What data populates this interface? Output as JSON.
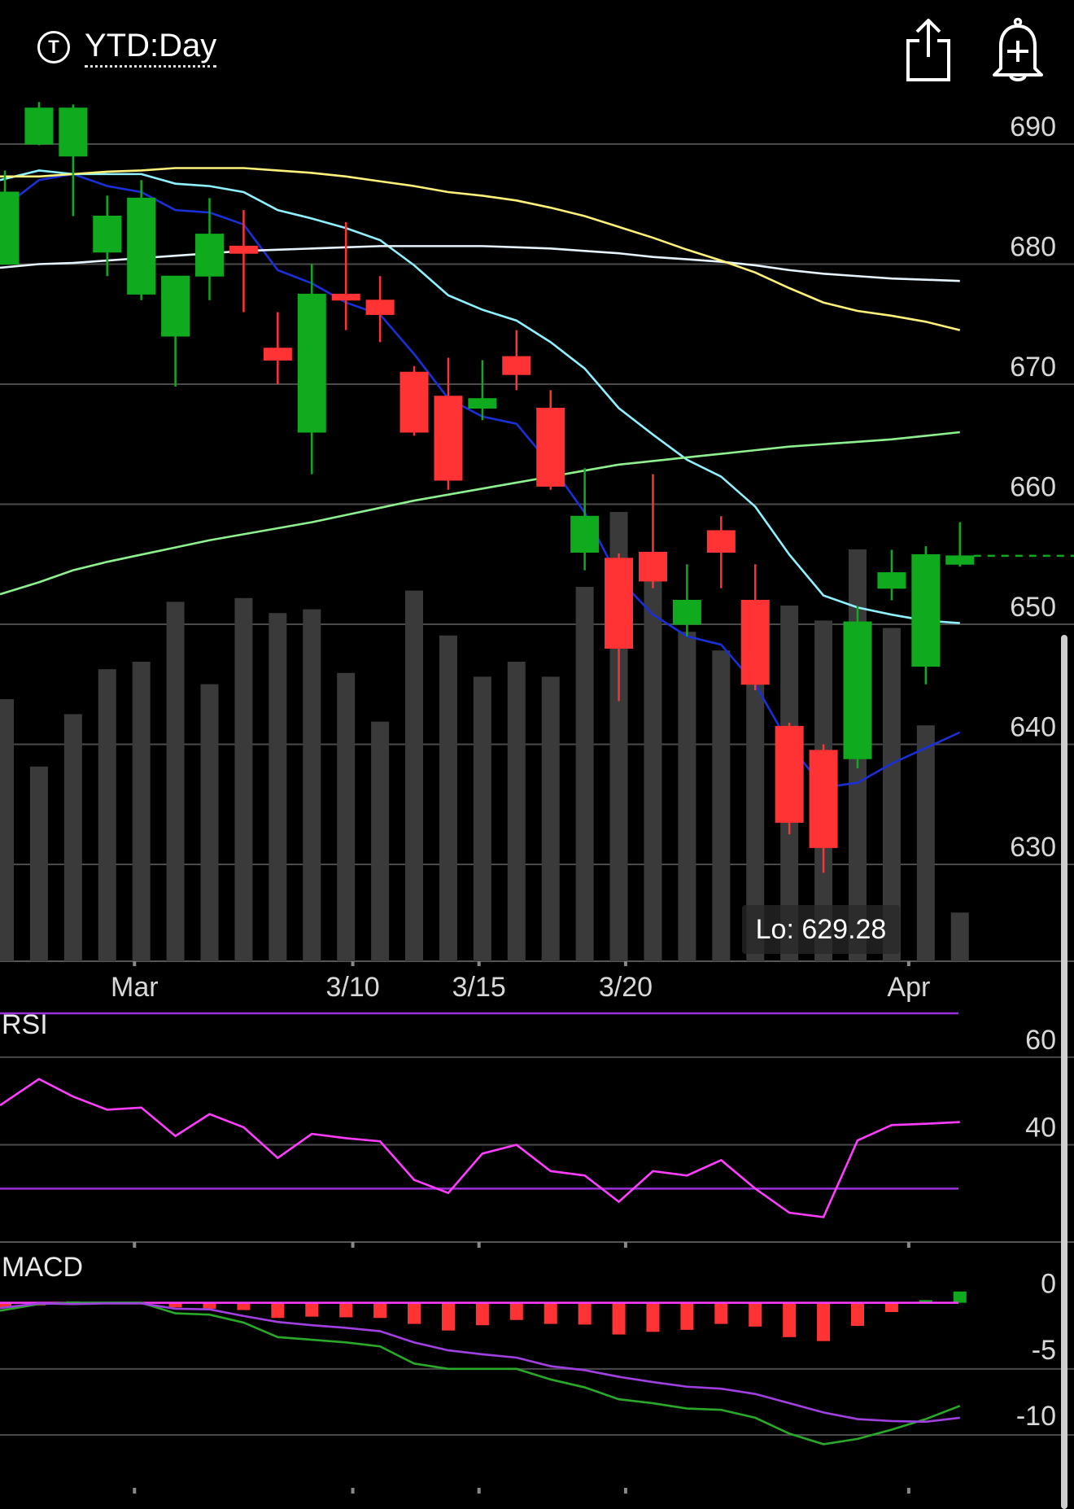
{
  "header": {
    "ticker_icon": "T",
    "range_label": "YTD:Day",
    "share_icon": "share-icon",
    "alert_icon": "bell-plus-icon"
  },
  "lo_label": "Lo: 629.28",
  "colors": {
    "up": "#0faa1d",
    "down": "#ff3333",
    "volume": "#3a3a3a",
    "ma_yellow": "#fff27a",
    "ma_white": "#e6f4ff",
    "ma_cyan": "#8ff1ff",
    "ma_blue": "#1a2fd6",
    "ma_green": "#8ff08f",
    "rsi": "#ff3dff",
    "rsi_band": "#9b30d9",
    "macd": "#2aa82a",
    "signal": "#a040e0"
  },
  "chart_data": [
    {
      "type": "candlestick",
      "title": "",
      "x_tick_labels": [
        "Mar",
        "3/10",
        "3/15",
        "3/20",
        "Apr"
      ],
      "ylim": [
        622,
        694
      ],
      "y_ticks": [
        630,
        640,
        650,
        660,
        670,
        680,
        690
      ],
      "last_price": 655.7,
      "low_label": "Lo: 629.28",
      "candles": [
        {
          "o": 680.0,
          "h": 687.8,
          "l": 680.0,
          "c": 686.0
        },
        {
          "o": 690.0,
          "h": 693.5,
          "l": 689.9,
          "c": 693.0
        },
        {
          "o": 689.0,
          "h": 693.3,
          "l": 684.0,
          "c": 693.0
        },
        {
          "o": 681.0,
          "h": 685.7,
          "l": 679.0,
          "c": 684.0
        },
        {
          "o": 677.5,
          "h": 687.0,
          "l": 677.0,
          "c": 685.5
        },
        {
          "o": 674.0,
          "h": 679.0,
          "l": 669.8,
          "c": 679.0
        },
        {
          "o": 679.0,
          "h": 685.5,
          "l": 677.0,
          "c": 682.5
        },
        {
          "o": 681.5,
          "h": 684.5,
          "l": 676.0,
          "c": 680.9
        },
        {
          "o": 673.0,
          "h": 676.0,
          "l": 670.0,
          "c": 672.0
        },
        {
          "o": 666.0,
          "h": 680.0,
          "l": 662.5,
          "c": 677.5
        },
        {
          "o": 677.5,
          "h": 683.5,
          "l": 674.5,
          "c": 677.0
        },
        {
          "o": 677.0,
          "h": 679.0,
          "l": 673.5,
          "c": 675.8
        },
        {
          "o": 671.0,
          "h": 671.5,
          "l": 665.7,
          "c": 666.0
        },
        {
          "o": 669.0,
          "h": 672.2,
          "l": 661.2,
          "c": 662.0
        },
        {
          "o": 668.0,
          "h": 672.0,
          "l": 667.0,
          "c": 668.8
        },
        {
          "o": 672.3,
          "h": 674.5,
          "l": 669.5,
          "c": 670.8
        },
        {
          "o": 668.0,
          "h": 669.5,
          "l": 661.2,
          "c": 661.5
        },
        {
          "o": 656.0,
          "h": 663.0,
          "l": 654.5,
          "c": 659.0
        },
        {
          "o": 655.5,
          "h": 655.9,
          "l": 643.6,
          "c": 648.0
        },
        {
          "o": 656.0,
          "h": 662.5,
          "l": 653.0,
          "c": 653.6
        },
        {
          "o": 650.0,
          "h": 655.0,
          "l": 649.0,
          "c": 652.0
        },
        {
          "o": 657.8,
          "h": 659.0,
          "l": 653.0,
          "c": 656.0
        },
        {
          "o": 652.0,
          "h": 655.0,
          "l": 644.5,
          "c": 645.0
        },
        {
          "o": 641.5,
          "h": 641.8,
          "l": 632.5,
          "c": 633.5
        },
        {
          "o": 639.5,
          "h": 640.0,
          "l": 629.3,
          "c": 631.4
        },
        {
          "o": 638.8,
          "h": 651.5,
          "l": 638.0,
          "c": 650.2
        },
        {
          "o": 653.0,
          "h": 656.2,
          "l": 652.0,
          "c": 654.3
        },
        {
          "o": 646.5,
          "h": 656.5,
          "l": 645.0,
          "c": 655.8
        },
        {
          "o": 655.0,
          "h": 658.5,
          "l": 654.8,
          "c": 655.7
        }
      ],
      "volume_relative": [
        0.7,
        0.52,
        0.66,
        0.78,
        0.8,
        0.96,
        0.74,
        0.97,
        0.93,
        0.94,
        0.77,
        0.64,
        0.99,
        0.87,
        0.76,
        0.8,
        0.76,
        1.0,
        1.2,
        1.04,
        0.88,
        0.83,
        0.76,
        0.95,
        0.91,
        1.1,
        0.89,
        0.63,
        0.13
      ],
      "moving_averages": [
        {
          "color_key": "ma_blue",
          "values": [
            684.5,
            687.0,
            687.5,
            686.5,
            686.0,
            684.5,
            684.3,
            683.3,
            679.5,
            678.4,
            676.8,
            675.8,
            672.5,
            668.8,
            667.3,
            666.7,
            663.3,
            659.3,
            653.8,
            650.8,
            649.0,
            648.3,
            645.0,
            640.0,
            636.4,
            636.8,
            638.4,
            639.7,
            641.0
          ]
        },
        {
          "color_key": "ma_cyan",
          "values": [
            687.0,
            687.8,
            687.5,
            687.5,
            687.5,
            686.7,
            686.5,
            686.0,
            684.5,
            683.8,
            683.0,
            682.0,
            679.9,
            677.4,
            676.2,
            675.3,
            673.5,
            671.3,
            668.0,
            665.8,
            663.7,
            662.3,
            659.8,
            655.8,
            652.4,
            651.4,
            650.8,
            650.3,
            650.1
          ]
        },
        {
          "color_key": "ma_white",
          "values": [
            679.7,
            680.0,
            680.1,
            680.3,
            680.5,
            680.7,
            680.9,
            681.1,
            681.2,
            681.3,
            681.4,
            681.5,
            681.5,
            681.5,
            681.5,
            681.4,
            681.3,
            681.1,
            680.9,
            680.6,
            680.4,
            680.2,
            679.9,
            679.5,
            679.2,
            679.0,
            678.8,
            678.7,
            678.6
          ]
        },
        {
          "color_key": "ma_yellow",
          "values": [
            687.3,
            687.3,
            687.5,
            687.7,
            687.8,
            688.0,
            688.0,
            688.0,
            687.8,
            687.6,
            687.3,
            686.9,
            686.5,
            686.0,
            685.7,
            685.3,
            684.7,
            684.0,
            683.1,
            682.2,
            681.2,
            680.3,
            679.3,
            678.0,
            676.8,
            676.1,
            675.7,
            675.2,
            674.5
          ]
        },
        {
          "color_key": "ma_green",
          "values": [
            652.5,
            653.5,
            654.5,
            655.2,
            655.8,
            656.4,
            657.0,
            657.5,
            658.0,
            658.5,
            659.1,
            659.7,
            660.3,
            660.8,
            661.3,
            661.8,
            662.3,
            662.8,
            663.3,
            663.6,
            663.9,
            664.2,
            664.5,
            664.8,
            665.0,
            665.2,
            665.4,
            665.7,
            666.0
          ]
        }
      ]
    },
    {
      "type": "line",
      "title": "RSI",
      "y_ticks": [
        40,
        60
      ],
      "ylim": [
        18,
        70
      ],
      "bands": [
        30,
        70
      ],
      "values": [
        49,
        55,
        51,
        48,
        48.5,
        42,
        47,
        44,
        37,
        42.5,
        41.5,
        40.8,
        32,
        29,
        38,
        40,
        34,
        33,
        27,
        34,
        33,
        36.5,
        30,
        24.5,
        23.5,
        41,
        44.5,
        44.8,
        45.2
      ]
    },
    {
      "type": "bar",
      "title": "MACD",
      "y_ticks": [
        0,
        -5,
        -10
      ],
      "ylim": [
        -14,
        2.5
      ],
      "histogram": [
        -0.35,
        -0.2,
        0.1,
        0.0,
        -0.1,
        -0.35,
        -0.45,
        -0.55,
        -1.15,
        -1.05,
        -1.1,
        -1.15,
        -1.6,
        -2.1,
        -1.7,
        -1.3,
        -1.6,
        -1.65,
        -2.4,
        -2.2,
        -2.05,
        -1.6,
        -1.8,
        -2.6,
        -2.9,
        -1.75,
        -0.7,
        0.2,
        0.85
      ],
      "macd_line": [
        -0.6,
        -0.1,
        0.0,
        0.0,
        0.0,
        -0.8,
        -0.9,
        -1.5,
        -2.6,
        -2.8,
        -3.0,
        -3.3,
        -4.6,
        -5.0,
        -5.0,
        -5.0,
        -5.8,
        -6.4,
        -7.3,
        -7.6,
        -8.0,
        -8.1,
        -8.7,
        -9.9,
        -10.7,
        -10.3,
        -9.6,
        -8.8,
        -7.8
      ],
      "signal_line": [
        -0.4,
        -0.05,
        -0.1,
        -0.05,
        -0.05,
        -0.45,
        -0.5,
        -1.0,
        -1.45,
        -1.7,
        -1.9,
        -2.15,
        -3.0,
        -3.6,
        -3.9,
        -4.15,
        -4.8,
        -5.1,
        -5.6,
        -6.0,
        -6.35,
        -6.5,
        -6.9,
        -7.6,
        -8.3,
        -8.8,
        -8.95,
        -9.0,
        -8.7
      ]
    }
  ]
}
